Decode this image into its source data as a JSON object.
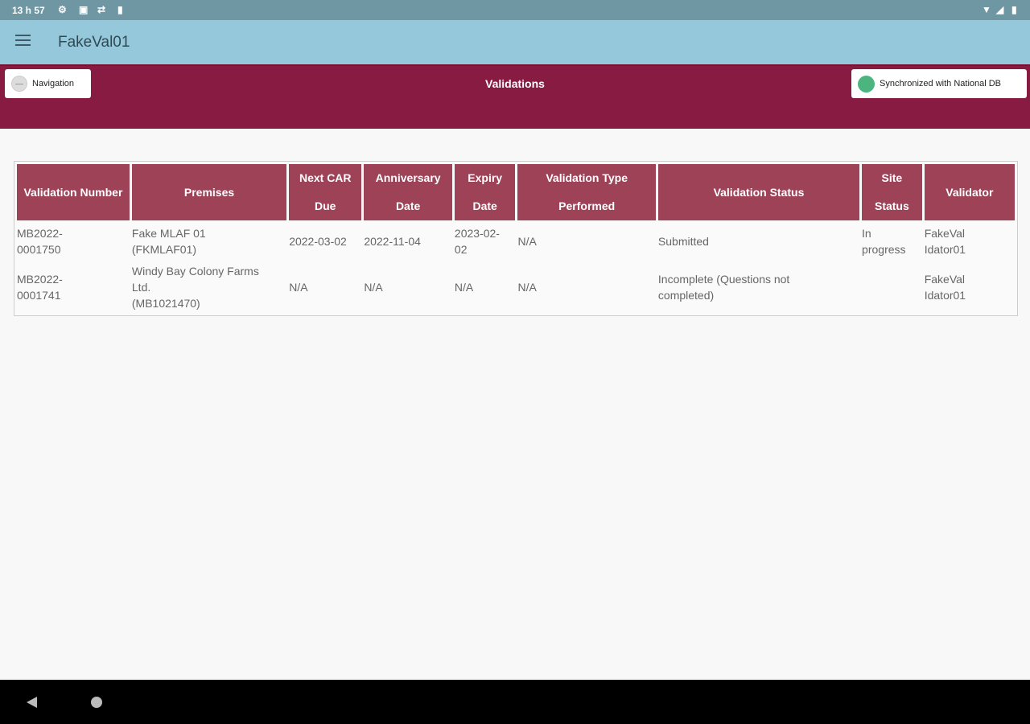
{
  "status_bar": {
    "time": "13 h 57",
    "icons": [
      "gear-icon",
      "image-icon",
      "network-icon",
      "sd-card-icon",
      "wifi-icon",
      "signal-icon",
      "battery-icon"
    ]
  },
  "app_bar": {
    "title": "FakeVal01"
  },
  "header": {
    "navigation_label": "Navigation",
    "page_title": "Validations",
    "sync_label": "Synchronized with National DB",
    "sync_color": "#4cb57f",
    "band_color": "#881b41"
  },
  "table": {
    "columns": [
      "Validation Number",
      "Premises",
      "Next CAR Due",
      "Anniversary Date",
      "Expiry Date",
      "Validation Type Performed",
      "Validation Status",
      "Site Status",
      "Validator"
    ],
    "rows": [
      [
        "    MB2022-\n0001750",
        "Fake MLAF 01\n(FKMLAF01)",
        "2022-03-02",
        "2022-11-04",
        "2023-02-\n02",
        "N/A",
        "Submitted",
        "In\nprogress",
        "FakeVal\nIdator01"
      ],
      [
        "    MB2022-\n0001741",
        "Windy Bay Colony Farms\nLtd.\n(MB1021470)",
        "N/A",
        "N/A",
        "N/A",
        "N/A",
        "Incomplete (Questions not\ncompleted)",
        "",
        "FakeVal\nIdator01"
      ]
    ]
  }
}
